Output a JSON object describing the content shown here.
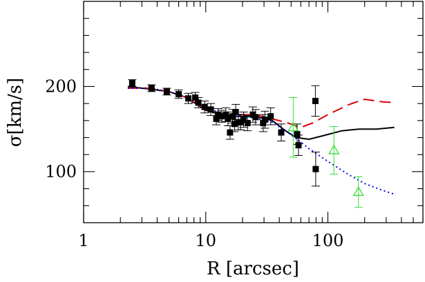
{
  "chart_data": {
    "type": "scatter",
    "xlabel": "R [arcsec]",
    "ylabel": "σ[km/s]",
    "xscale": "log",
    "xlim": [
      1,
      600
    ],
    "ylim": [
      40,
      300
    ],
    "xticks": [
      {
        "value": 1,
        "label": "1"
      },
      {
        "value": 10,
        "label": "10"
      },
      {
        "value": 100,
        "label": "100"
      }
    ],
    "yticks": [
      {
        "value": 100,
        "label": "100"
      },
      {
        "value": 200,
        "label": "200"
      }
    ],
    "grid": false,
    "series": [
      {
        "kind": "points",
        "marker": "filled-square",
        "color": "#000000",
        "points": [
          {
            "x": 2.5,
            "y": 204,
            "err": 4
          },
          {
            "x": 3.6,
            "y": 198,
            "err": 4
          },
          {
            "x": 4.8,
            "y": 194,
            "err": 4
          },
          {
            "x": 6.0,
            "y": 191,
            "err": 5
          },
          {
            "x": 7.2,
            "y": 186,
            "err": 6
          },
          {
            "x": 8.2,
            "y": 187,
            "err": 6
          },
          {
            "x": 8.7,
            "y": 181,
            "err": 6
          },
          {
            "x": 9.8,
            "y": 176,
            "err": 7
          },
          {
            "x": 11.0,
            "y": 173,
            "err": 7
          },
          {
            "x": 12.2,
            "y": 162,
            "err": 7
          },
          {
            "x": 12.6,
            "y": 167,
            "err": 7
          },
          {
            "x": 13.5,
            "y": 165,
            "err": 7
          },
          {
            "x": 14.6,
            "y": 167,
            "err": 8
          },
          {
            "x": 15.2,
            "y": 162,
            "err": 8
          },
          {
            "x": 15.8,
            "y": 146,
            "err": 8
          },
          {
            "x": 16.6,
            "y": 165,
            "err": 8
          },
          {
            "x": 17.2,
            "y": 156,
            "err": 9
          },
          {
            "x": 17.6,
            "y": 170,
            "err": 9
          },
          {
            "x": 18.5,
            "y": 158,
            "err": 9
          },
          {
            "x": 19.3,
            "y": 158,
            "err": 9
          },
          {
            "x": 20.4,
            "y": 161,
            "err": 9
          },
          {
            "x": 22.0,
            "y": 157,
            "err": 9
          },
          {
            "x": 24.3,
            "y": 167,
            "err": 9
          },
          {
            "x": 25.6,
            "y": 164,
            "err": 9
          },
          {
            "x": 29.5,
            "y": 157,
            "err": 10
          },
          {
            "x": 30.5,
            "y": 161,
            "err": 10
          },
          {
            "x": 34.0,
            "y": 165,
            "err": 10
          },
          {
            "x": 41.5,
            "y": 146,
            "err": 10
          },
          {
            "x": 56.0,
            "y": 144,
            "err": 12
          },
          {
            "x": 57.5,
            "y": 131,
            "err": 12
          },
          {
            "x": 79.0,
            "y": 183,
            "err": 18
          },
          {
            "x": 79.5,
            "y": 103,
            "err": 20
          }
        ]
      },
      {
        "kind": "points",
        "marker": "open-triangle",
        "color": "#33dd33",
        "points": [
          {
            "x": 52.0,
            "y": 152,
            "err": 35
          },
          {
            "x": 112.0,
            "y": 125,
            "err": 28
          },
          {
            "x": 178.0,
            "y": 76,
            "err": 18
          }
        ]
      },
      {
        "kind": "line",
        "style": "solid",
        "color": "#000000",
        "x": [
          2.3,
          3.5,
          5,
          7,
          10,
          14,
          18,
          25,
          35,
          45,
          55,
          70,
          90,
          130,
          180,
          250,
          350
        ],
        "y": [
          200,
          197,
          194,
          187,
          172,
          166,
          165,
          165,
          160,
          148,
          140,
          138,
          142,
          148,
          150,
          150,
          152
        ]
      },
      {
        "kind": "line",
        "style": "dashed",
        "color": "#dd0000",
        "x": [
          2.3,
          3.5,
          5,
          7,
          10,
          14,
          18,
          25,
          35,
          45,
          60,
          75,
          100,
          150,
          200,
          280,
          360
        ],
        "y": [
          198,
          198,
          194,
          187,
          173,
          167,
          167,
          167,
          162,
          158,
          152,
          157,
          167,
          179,
          185,
          182,
          181
        ]
      },
      {
        "kind": "line",
        "style": "dotted",
        "color": "#0000ee",
        "x": [
          2.3,
          3.5,
          5,
          7,
          10,
          14,
          18,
          25,
          35,
          45,
          55,
          70,
          100,
          150,
          200,
          280,
          360
        ],
        "y": [
          198,
          198,
          194,
          188,
          175,
          168,
          166,
          163,
          158,
          148,
          139,
          127,
          112,
          96,
          86,
          78,
          73
        ]
      }
    ]
  }
}
